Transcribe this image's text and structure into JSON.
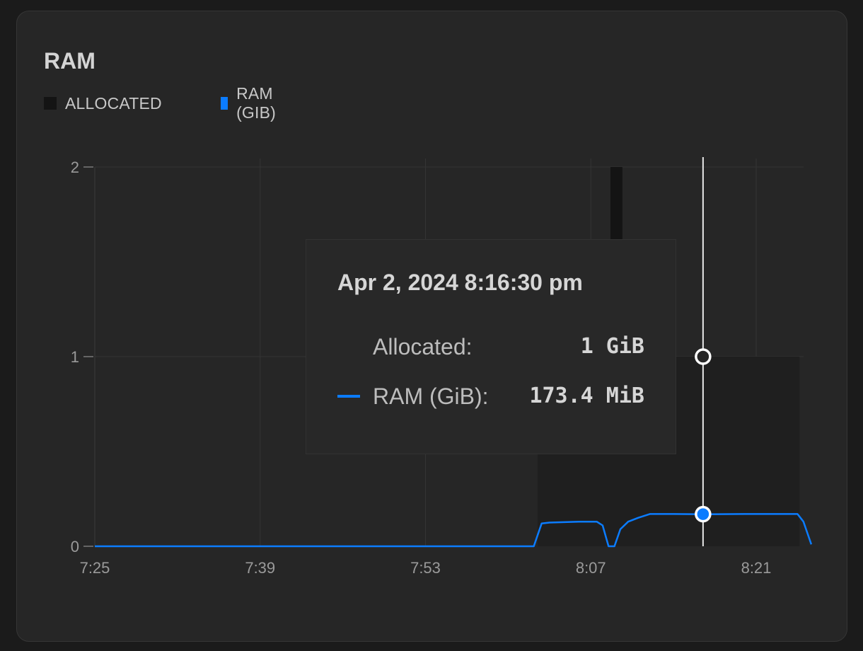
{
  "title": "RAM",
  "legend": [
    {
      "label": "ALLOCATED",
      "color": "#141414"
    },
    {
      "label": "RAM (GIB)",
      "color": "#0b7cff"
    }
  ],
  "tooltip": {
    "title": "Apr 2, 2024 8:16:30 pm",
    "rows": [
      {
        "label": "Allocated:",
        "value": "1 GiB"
      },
      {
        "label": "RAM (GiB):",
        "value": "173.4 MiB",
        "color": "#0b7cff"
      }
    ]
  },
  "chart_data": {
    "type": "area",
    "title": "RAM",
    "xlabel": "",
    "ylabel": "",
    "x_range": [
      "7:25",
      "8:26"
    ],
    "x_ticks": [
      "7:25",
      "7:39",
      "7:53",
      "8:07",
      "8:21"
    ],
    "ylim": [
      0,
      2
    ],
    "y_ticks": [
      "0",
      "1",
      "2"
    ],
    "grid": true,
    "legend_position": "top-left",
    "series": [
      {
        "name": "ALLOCATED",
        "style": "step-area",
        "points": [
          {
            "x": "7:25",
            "y": 0
          },
          {
            "x": "8:02:30",
            "y": 0
          },
          {
            "x": "8:02:30",
            "y": 0.5
          },
          {
            "x": "8:08:40",
            "y": 0.5
          },
          {
            "x": "8:08:40",
            "y": 2
          },
          {
            "x": "8:09:40",
            "y": 2
          },
          {
            "x": "8:09:40",
            "y": 0.5
          },
          {
            "x": "8:13:30",
            "y": 0.5
          },
          {
            "x": "8:13:30",
            "y": 1
          },
          {
            "x": "8:24:40",
            "y": 1
          },
          {
            "x": "8:24:40",
            "y": 0
          }
        ]
      },
      {
        "name": "RAM (GIB)",
        "style": "line",
        "points": [
          {
            "x": "7:25",
            "y": 0
          },
          {
            "x": "8:02:10",
            "y": 0
          },
          {
            "x": "8:02:50",
            "y": 0.12
          },
          {
            "x": "8:03:30",
            "y": 0.125
          },
          {
            "x": "8:06:00",
            "y": 0.13
          },
          {
            "x": "8:07:30",
            "y": 0.13
          },
          {
            "x": "8:08:00",
            "y": 0.11
          },
          {
            "x": "8:08:30",
            "y": 0.0
          },
          {
            "x": "8:09:00",
            "y": 0.0
          },
          {
            "x": "8:09:30",
            "y": 0.09
          },
          {
            "x": "8:10:10",
            "y": 0.13
          },
          {
            "x": "8:11:00",
            "y": 0.15
          },
          {
            "x": "8:12:00",
            "y": 0.17
          },
          {
            "x": "8:14:00",
            "y": 0.17
          },
          {
            "x": "8:16:30",
            "y": 0.169
          },
          {
            "x": "8:20:00",
            "y": 0.17
          },
          {
            "x": "8:24:30",
            "y": 0.17
          },
          {
            "x": "8:25:00",
            "y": 0.13
          },
          {
            "x": "8:25:40",
            "y": 0.01
          }
        ]
      }
    ],
    "hover": {
      "x": "8:16:30",
      "allocated": 1,
      "ram": 0.1693
    }
  }
}
